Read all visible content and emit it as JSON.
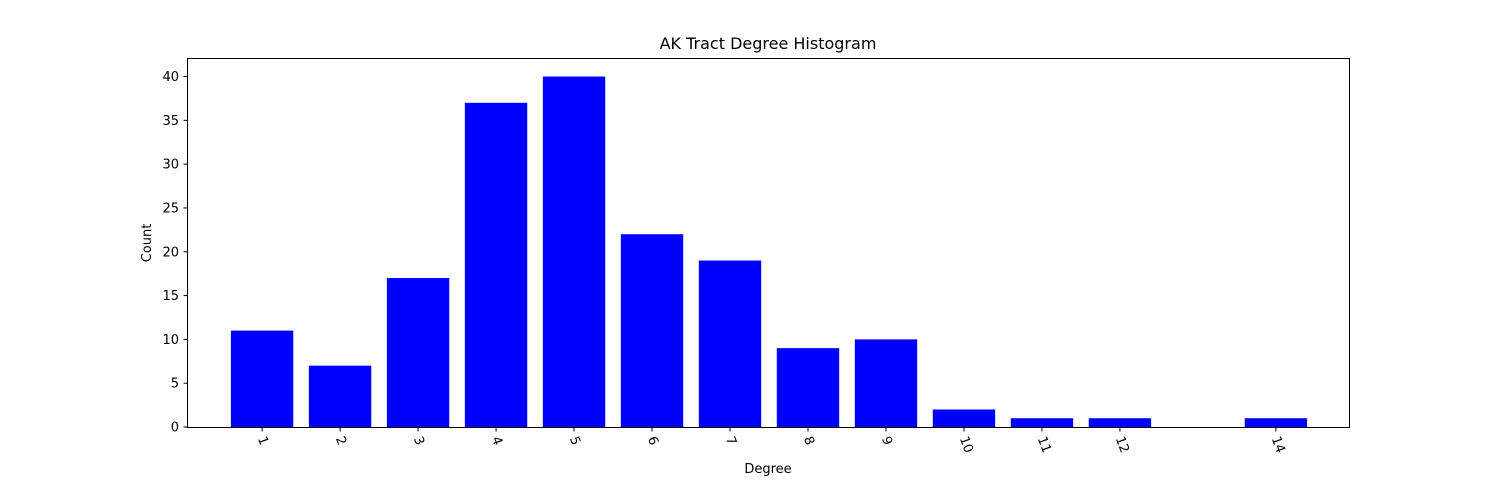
{
  "chart_data": {
    "type": "bar",
    "title": "AK Tract Degree Histogram",
    "xlabel": "Degree",
    "ylabel": "Count",
    "x": [
      1,
      2,
      3,
      4,
      5,
      6,
      7,
      8,
      9,
      10,
      11,
      12,
      14
    ],
    "categories": [
      "1",
      "2",
      "3",
      "4",
      "5",
      "6",
      "7",
      "8",
      "9",
      "10",
      "11",
      "12",
      "14"
    ],
    "values": [
      11,
      7,
      17,
      37,
      40,
      22,
      19,
      9,
      10,
      2,
      1,
      1,
      1
    ],
    "xlim": [
      0.05,
      14.95
    ],
    "ylim": [
      0,
      42
    ],
    "yticks": [
      0,
      5,
      10,
      15,
      20,
      25,
      30,
      35,
      40
    ],
    "x_tick_rotation_deg": -70,
    "bar_color": "#0000ff",
    "grid": false,
    "legend": "none"
  }
}
